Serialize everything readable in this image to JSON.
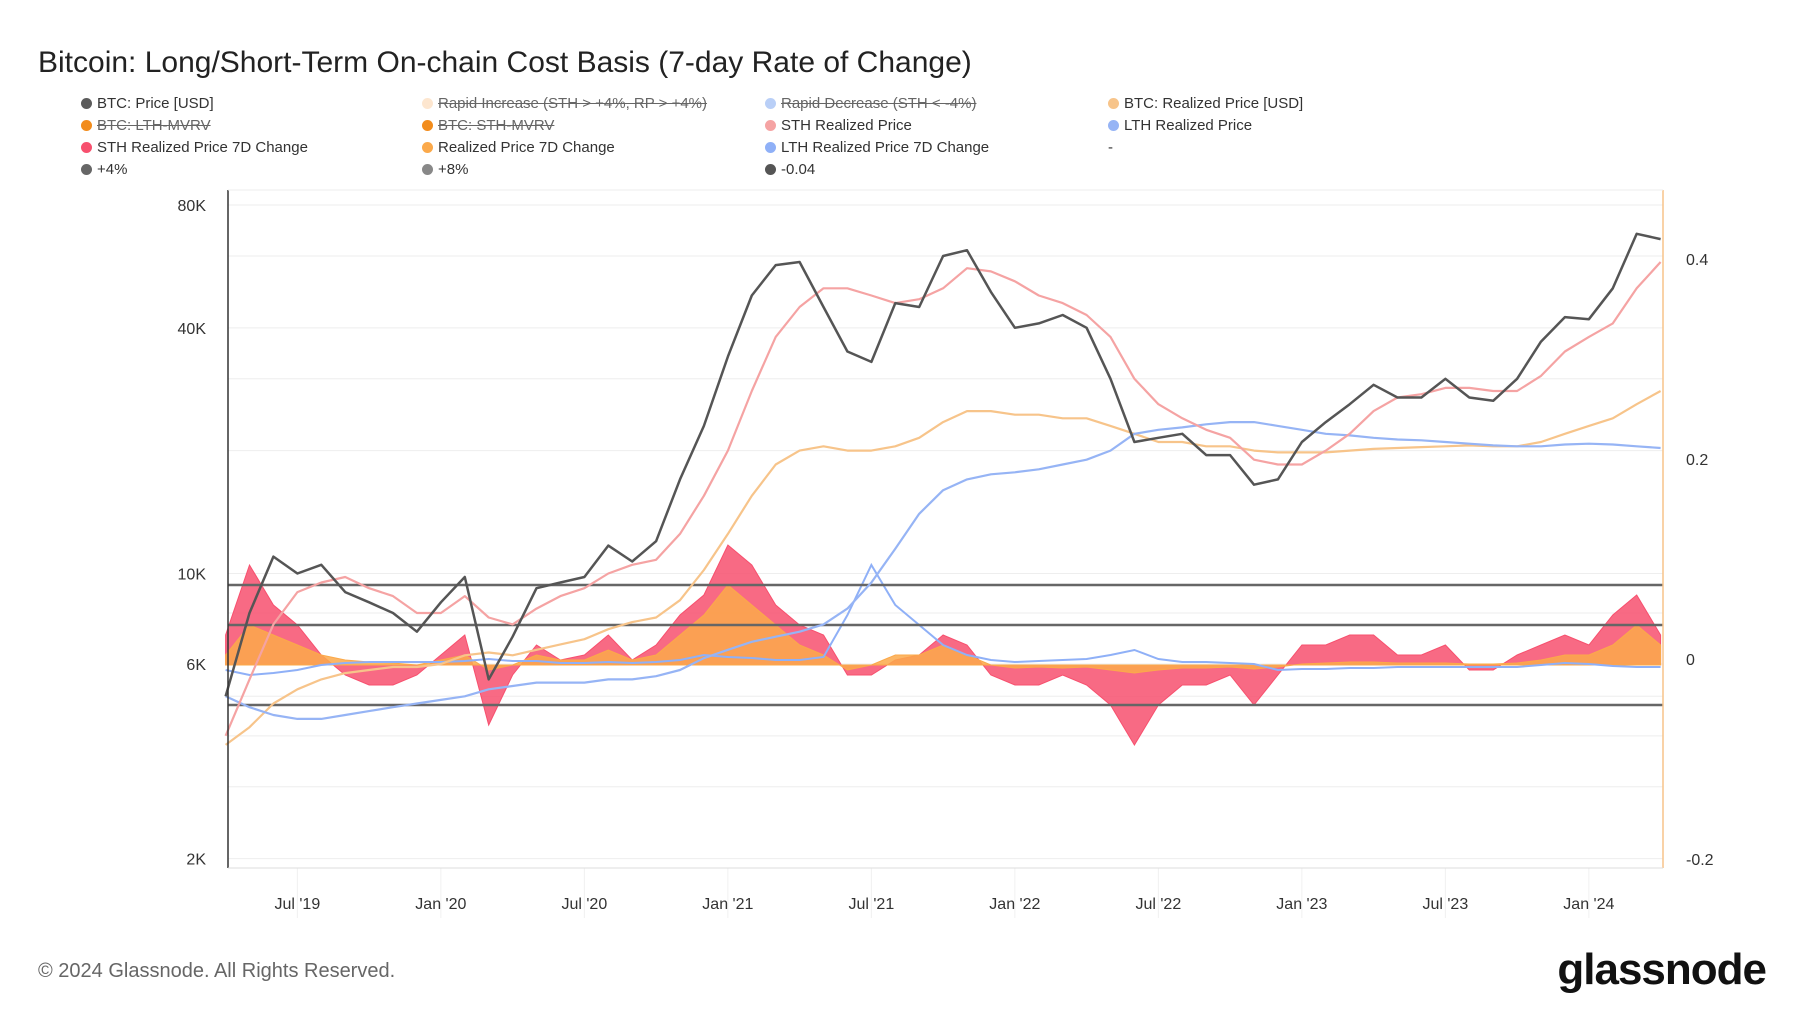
{
  "chart_data": {
    "type": "line",
    "title": "Bitcoin: Long/Short-Term On-chain Cost Basis (7-day Rate of Change)",
    "x_ticks": [
      "Jul '19",
      "Jan '20",
      "Jul '20",
      "Jan '21",
      "Jul '21",
      "Jan '22",
      "Jul '22",
      "Jan '23",
      "Jul '23",
      "Jan '24"
    ],
    "x_range": [
      "2019-04",
      "2024-04"
    ],
    "y_left": {
      "scale": "log",
      "range": [
        2000,
        80000
      ],
      "ticks": [
        {
          "v": 2000,
          "label": "2K"
        },
        {
          "v": 6000,
          "label": "6K"
        },
        {
          "v": 10000,
          "label": "10K"
        },
        {
          "v": 40000,
          "label": "40K"
        },
        {
          "v": 80000,
          "label": "80K"
        }
      ]
    },
    "y_right": {
      "scale": "linear",
      "range": [
        -0.2,
        0.45
      ],
      "ticks": [
        {
          "v": -0.2,
          "label": "-0.2"
        },
        {
          "v": 0,
          "label": "0"
        },
        {
          "v": 0.2,
          "label": "0.2"
        },
        {
          "v": 0.4,
          "label": "0.4"
        }
      ]
    },
    "grid": true,
    "legend_placement": "top",
    "legend": [
      {
        "label": "BTC: Price [USD]",
        "color": "#5b5b5b",
        "enabled": true
      },
      {
        "label": "Rapid Increase (STH > +4%, RP > +4%)",
        "color": "#fde6cf",
        "enabled": false
      },
      {
        "label": "Rapid Decrease (STH < -4%)",
        "color": "#b9cff7",
        "enabled": false
      },
      {
        "label": "BTC: Realized Price [USD]",
        "color": "#f7c48a",
        "enabled": true
      },
      {
        "label": "BTC: LTH-MVRV",
        "color": "#f28c1c",
        "enabled": false
      },
      {
        "label": "BTC: STH-MVRV",
        "color": "#f28c1c",
        "enabled": false
      },
      {
        "label": "STH Realized Price",
        "color": "#f5a3a3",
        "enabled": true
      },
      {
        "label": "LTH Realized Price",
        "color": "#96b4f5",
        "enabled": true
      },
      {
        "label": "STH Realized Price 7D Change",
        "color": "#f7506e",
        "enabled": true
      },
      {
        "label": "Realized Price 7D Change",
        "color": "#fba94a",
        "enabled": true
      },
      {
        "label": "LTH Realized Price 7D Change",
        "color": "#8fb0f7",
        "enabled": true
      },
      {
        "label": "-",
        "color": "",
        "enabled": true
      },
      {
        "label": "+4%",
        "color": "#666666",
        "enabled": true
      },
      {
        "label": "+8%",
        "color": "#888888",
        "enabled": true
      },
      {
        "label": "-0.04",
        "color": "#555555",
        "enabled": true
      }
    ],
    "thresholds": [
      0.08,
      0.04,
      -0.04
    ],
    "months": [
      "2019-04",
      "2019-05",
      "2019-06",
      "2019-07",
      "2019-08",
      "2019-09",
      "2019-10",
      "2019-11",
      "2019-12",
      "2020-01",
      "2020-02",
      "2020-03",
      "2020-04",
      "2020-05",
      "2020-06",
      "2020-07",
      "2020-08",
      "2020-09",
      "2020-10",
      "2020-11",
      "2020-12",
      "2021-01",
      "2021-02",
      "2021-03",
      "2021-04",
      "2021-05",
      "2021-06",
      "2021-07",
      "2021-08",
      "2021-09",
      "2021-10",
      "2021-11",
      "2021-12",
      "2022-01",
      "2022-02",
      "2022-03",
      "2022-04",
      "2022-05",
      "2022-06",
      "2022-07",
      "2022-08",
      "2022-09",
      "2022-10",
      "2022-11",
      "2022-12",
      "2023-01",
      "2023-02",
      "2023-03",
      "2023-04",
      "2023-05",
      "2023-06",
      "2023-07",
      "2023-08",
      "2023-09",
      "2023-10",
      "2023-11",
      "2023-12",
      "2024-01",
      "2024-02",
      "2024-03",
      "2024-04"
    ],
    "series": [
      {
        "name": "BTC: Price [USD]",
        "axis": "left",
        "color": "#555555",
        "values": [
          5000,
          8000,
          11000,
          10000,
          10500,
          9000,
          8500,
          8000,
          7200,
          8500,
          9800,
          5500,
          7000,
          9200,
          9500,
          9800,
          11700,
          10700,
          12000,
          17000,
          23000,
          34000,
          48000,
          57000,
          58000,
          45000,
          35000,
          33000,
          46000,
          45000,
          60000,
          62000,
          49000,
          40000,
          41000,
          43000,
          40000,
          30000,
          21000,
          21500,
          22000,
          19500,
          19500,
          16500,
          17000,
          21000,
          23500,
          26000,
          29000,
          27000,
          27000,
          30000,
          27000,
          26500,
          30000,
          37000,
          42500,
          42000,
          50000,
          68000,
          66000
        ]
      },
      {
        "name": "STH Realized Price",
        "axis": "left",
        "color": "#f5a3a3",
        "values": [
          4000,
          5500,
          7500,
          9000,
          9500,
          9800,
          9200,
          8800,
          8000,
          8000,
          8800,
          7800,
          7500,
          8200,
          8800,
          9200,
          10000,
          10500,
          10800,
          12500,
          15500,
          20000,
          28000,
          38000,
          45000,
          50000,
          50000,
          48000,
          46000,
          47000,
          50000,
          56000,
          55000,
          52000,
          48000,
          46000,
          43000,
          38000,
          30000,
          26000,
          24000,
          22500,
          21500,
          19000,
          18500,
          18500,
          20000,
          22000,
          25000,
          27000,
          27500,
          28500,
          28500,
          28000,
          28000,
          30500,
          35000,
          38000,
          41000,
          50000,
          58000
        ]
      },
      {
        "name": "BTC: Realized Price [USD]",
        "axis": "left",
        "color": "#f7c48a",
        "values": [
          3800,
          4200,
          4800,
          5200,
          5500,
          5700,
          5800,
          5900,
          5900,
          6000,
          6300,
          6400,
          6300,
          6500,
          6700,
          6900,
          7300,
          7600,
          7800,
          8600,
          10200,
          12500,
          15500,
          18500,
          20000,
          20500,
          20000,
          20000,
          20500,
          21500,
          23500,
          25000,
          25000,
          24500,
          24500,
          24000,
          24000,
          23000,
          22000,
          21000,
          21000,
          20500,
          20500,
          20000,
          19800,
          19800,
          19800,
          20000,
          20200,
          20300,
          20400,
          20500,
          20600,
          20500,
          20500,
          21000,
          22000,
          23000,
          24000,
          26000,
          28000
        ]
      },
      {
        "name": "LTH Realized Price",
        "axis": "left",
        "color": "#96b4f5",
        "values": [
          5000,
          4700,
          4500,
          4400,
          4400,
          4500,
          4600,
          4700,
          4800,
          4900,
          5000,
          5200,
          5300,
          5400,
          5400,
          5400,
          5500,
          5500,
          5600,
          5800,
          6200,
          6500,
          6800,
          7000,
          7200,
          7500,
          8200,
          9500,
          11500,
          14000,
          16000,
          17000,
          17500,
          17700,
          18000,
          18500,
          19000,
          20000,
          22000,
          22500,
          22800,
          23200,
          23500,
          23500,
          23000,
          22500,
          22000,
          21800,
          21500,
          21300,
          21200,
          21000,
          20800,
          20600,
          20500,
          20500,
          20700,
          20800,
          20700,
          20500,
          20300
        ]
      },
      {
        "name": "STH Realized Price 7D Change",
        "axis": "right",
        "color": "#f7506e",
        "fill": true,
        "values": [
          0.03,
          0.1,
          0.06,
          0.04,
          0.01,
          -0.01,
          -0.02,
          -0.02,
          -0.01,
          0.01,
          0.03,
          -0.06,
          -0.01,
          0.02,
          0.005,
          0.01,
          0.03,
          0.005,
          0.02,
          0.05,
          0.07,
          0.12,
          0.1,
          0.06,
          0.04,
          0.03,
          -0.01,
          -0.01,
          0.005,
          0.01,
          0.03,
          0.02,
          -0.01,
          -0.02,
          -0.02,
          -0.01,
          -0.02,
          -0.04,
          -0.08,
          -0.04,
          -0.02,
          -0.02,
          -0.01,
          -0.04,
          -0.01,
          0.02,
          0.02,
          0.03,
          0.03,
          0.01,
          0.01,
          0.02,
          -0.005,
          -0.005,
          0.01,
          0.02,
          0.03,
          0.02,
          0.05,
          0.07,
          0.03
        ]
      },
      {
        "name": "Realized Price 7D Change",
        "axis": "right",
        "color": "#fba94a",
        "fill": true,
        "values": [
          0.01,
          0.04,
          0.03,
          0.02,
          0.01,
          0.005,
          0.003,
          0.002,
          0,
          0.005,
          0.01,
          -0.005,
          0,
          0.01,
          0.005,
          0.005,
          0.015,
          0.005,
          0.01,
          0.03,
          0.05,
          0.08,
          0.06,
          0.04,
          0.02,
          0.01,
          -0.005,
          0,
          0.01,
          0.01,
          0.02,
          0.01,
          0,
          -0.003,
          -0.002,
          -0.003,
          -0.002,
          -0.005,
          -0.008,
          -0.005,
          -0.003,
          -0.003,
          -0.002,
          -0.004,
          -0.002,
          0.001,
          0.002,
          0.003,
          0.003,
          0.002,
          0.002,
          0.002,
          0.001,
          0.001,
          0.002,
          0.005,
          0.01,
          0.01,
          0.02,
          0.04,
          0.02
        ]
      },
      {
        "name": "LTH Realized Price 7D Change",
        "axis": "right",
        "color": "#8fb0f7",
        "fill": false,
        "values": [
          -0.005,
          -0.01,
          -0.008,
          -0.005,
          0,
          0.002,
          0.003,
          0.003,
          0.003,
          0.003,
          0.004,
          0.006,
          0.004,
          0.004,
          0.002,
          0.002,
          0.003,
          0.002,
          0.003,
          0.005,
          0.01,
          0.008,
          0.007,
          0.005,
          0.005,
          0.008,
          0.05,
          0.1,
          0.06,
          0.04,
          0.02,
          0.01,
          0.005,
          0.003,
          0.004,
          0.005,
          0.006,
          0.01,
          0.015,
          0.006,
          0.003,
          0.003,
          0.002,
          0.001,
          -0.005,
          -0.004,
          -0.004,
          -0.003,
          -0.003,
          -0.002,
          -0.002,
          -0.002,
          -0.002,
          -0.002,
          -0.002,
          0.0,
          0.002,
          0.001,
          -0.001,
          -0.002,
          -0.002
        ]
      }
    ]
  },
  "footer": {
    "copyright": "© 2024 Glassnode. All Rights Reserved.",
    "logo": "glassnode"
  }
}
